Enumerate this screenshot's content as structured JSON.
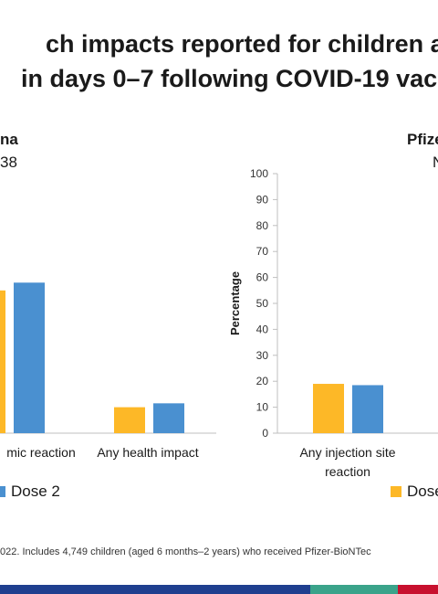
{
  "title": {
    "line1": "ch impacts reported for children ag",
    "line2": "in days 0–7 following COVID-19 vac"
  },
  "left_panel": {
    "title": "na",
    "subtitle": "38"
  },
  "right_panel": {
    "title": "Pfize",
    "subtitle": "N"
  },
  "legend": {
    "left_label": "Dose 2",
    "right_label": "Dose"
  },
  "footnote": "022. Includes 4,749 children (aged 6 months–2 years) who received Pfizer-BioNTec",
  "colors": {
    "dose1": "#FDB827",
    "dose2": "#4A90D0",
    "axis": "#bfbfbf"
  },
  "chart_data": [
    {
      "type": "bar",
      "title": "na",
      "categories": [
        "mic reaction",
        "Any health impact"
      ],
      "series": [
        {
          "values": [
            55,
            10
          ]
        },
        {
          "name": "Dose 2",
          "values": [
            58,
            11.5
          ]
        }
      ],
      "ylim": [
        0,
        100
      ]
    },
    {
      "type": "bar",
      "title": "Pfize",
      "categories": [
        "Any injection site reaction"
      ],
      "series": [
        {
          "name": "Dose",
          "values": [
            19
          ]
        },
        {
          "values": [
            18.5
          ]
        }
      ],
      "ylabel": "Percentage",
      "ylim": [
        0,
        100
      ],
      "yticks": [
        0,
        10,
        20,
        30,
        40,
        50,
        60,
        70,
        80,
        90,
        100
      ]
    }
  ]
}
